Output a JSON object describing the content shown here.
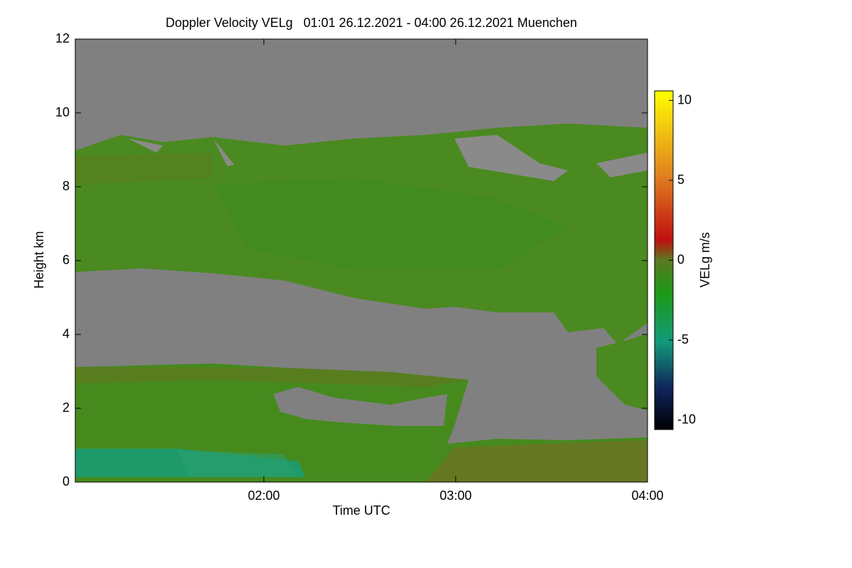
{
  "chart_data": {
    "type": "heatmap",
    "title": "Doppler Velocity VELg   01:01 26.12.2021 - 04:00 26.12.2021 Muenchen",
    "xlabel": "Time UTC",
    "ylabel": "Height km",
    "xlim": [
      61,
      240
    ],
    "xticks": [
      {
        "value": 120,
        "label": "02:00"
      },
      {
        "value": 180,
        "label": "03:00"
      },
      {
        "value": 240,
        "label": "04:00"
      }
    ],
    "ylim": [
      0,
      12
    ],
    "yticks": [
      0,
      2,
      4,
      6,
      8,
      10,
      12
    ],
    "colorbar": {
      "label": "VELg m/s",
      "lim": [
        -10.6,
        10.6
      ],
      "ticks": [
        -10,
        -5,
        0,
        5,
        10
      ]
    }
  }
}
